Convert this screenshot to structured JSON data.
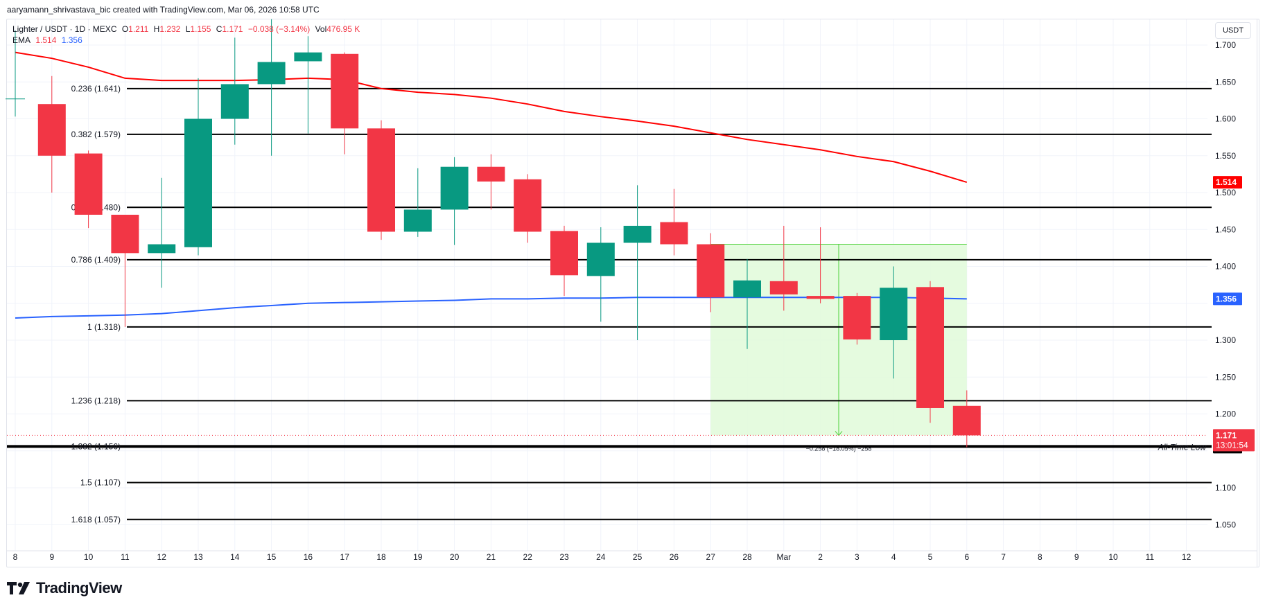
{
  "header": {
    "credit": "aaryamann_shrivastava_bic created with TradingView.com, Mar 06, 2026 10:58 UTC"
  },
  "legend": {
    "symbol": "Lighter / USDT · 1D · MEXC",
    "open_label": "O",
    "open": "1.211",
    "high_label": "H",
    "high": "1.232",
    "low_label": "L",
    "low": "1.155",
    "close_label": "C",
    "close": "1.171",
    "change": "−0.038 (−3.14%)",
    "vol_label": "Vol",
    "vol": "476.95 K",
    "ema_label": "EMA",
    "ema1": "1.514",
    "ema2": "1.356"
  },
  "price_axis": {
    "currency_button": "USDT",
    "ticks": [
      "1.700",
      "1.650",
      "1.600",
      "1.550",
      "1.500",
      "1.450",
      "1.400",
      "1.350",
      "1.300",
      "1.250",
      "1.200",
      "1.150",
      "1.100",
      "1.050"
    ],
    "badges": {
      "ema_long": {
        "value": "1.514",
        "color": "#ff0000"
      },
      "ema_short": {
        "value": "1.356",
        "color": "#2962ff"
      },
      "last_price": {
        "value": "1.171",
        "countdown": "13:01:54",
        "color": "#f23645"
      },
      "ath_low": {
        "value": "1.155",
        "color": "#000000"
      }
    }
  },
  "time_axis": {
    "ticks": [
      "8",
      "9",
      "10",
      "11",
      "12",
      "13",
      "14",
      "15",
      "16",
      "17",
      "18",
      "19",
      "20",
      "21",
      "22",
      "23",
      "24",
      "25",
      "26",
      "27",
      "28",
      "Mar",
      "2",
      "3",
      "4",
      "5",
      "6",
      "7",
      "8",
      "9",
      "10",
      "11",
      "12"
    ]
  },
  "annotations": {
    "all_time_low": "All-Time Low",
    "measure": "−0.258 (−18.05%) −258"
  },
  "footer": {
    "brand": "TradingView"
  },
  "colors": {
    "up": "#089981",
    "down": "#f23645",
    "ema_long": "#ff0000",
    "ema_short": "#2962ff",
    "fib": "#000000",
    "measure_fill": "#e2fbdc",
    "measure_line": "#4cd038"
  },
  "chart_data": {
    "type": "candlestick",
    "title": "Lighter / USDT · 1D · MEXC",
    "ylabel": "USDT",
    "ylim": [
      1.03,
      1.73
    ],
    "x": [
      "Feb 8",
      "Feb 9",
      "Feb 10",
      "Feb 11",
      "Feb 12",
      "Feb 13",
      "Feb 14",
      "Feb 15",
      "Feb 16",
      "Feb 17",
      "Feb 18",
      "Feb 19",
      "Feb 20",
      "Feb 21",
      "Feb 22",
      "Feb 23",
      "Feb 24",
      "Feb 25",
      "Feb 26",
      "Feb 27",
      "Feb 28",
      "Mar 1",
      "Mar 2",
      "Mar 3",
      "Mar 4",
      "Mar 5",
      "Mar 6"
    ],
    "ohlc": [
      {
        "date": "Feb 8",
        "o": 1.627,
        "h": 1.72,
        "l": 1.603,
        "c": 1.627
      },
      {
        "date": "Feb 9",
        "o": 1.62,
        "h": 1.658,
        "l": 1.5,
        "c": 1.55
      },
      {
        "date": "Feb 10",
        "o": 1.553,
        "h": 1.557,
        "l": 1.452,
        "c": 1.47
      },
      {
        "date": "Feb 11",
        "o": 1.47,
        "h": 1.468,
        "l": 1.318,
        "c": 1.418
      },
      {
        "date": "Feb 12",
        "o": 1.418,
        "h": 1.52,
        "l": 1.371,
        "c": 1.43
      },
      {
        "date": "Feb 13",
        "o": 1.426,
        "h": 1.655,
        "l": 1.415,
        "c": 1.6
      },
      {
        "date": "Feb 14",
        "o": 1.6,
        "h": 1.71,
        "l": 1.565,
        "c": 1.647
      },
      {
        "date": "Feb 15",
        "o": 1.647,
        "h": 1.735,
        "l": 1.55,
        "c": 1.677
      },
      {
        "date": "Feb 16",
        "o": 1.678,
        "h": 1.712,
        "l": 1.58,
        "c": 1.69
      },
      {
        "date": "Feb 17",
        "o": 1.688,
        "h": 1.69,
        "l": 1.552,
        "c": 1.587
      },
      {
        "date": "Feb 18",
        "o": 1.587,
        "h": 1.598,
        "l": 1.436,
        "c": 1.447
      },
      {
        "date": "Feb 19",
        "o": 1.447,
        "h": 1.533,
        "l": 1.44,
        "c": 1.477
      },
      {
        "date": "Feb 20",
        "o": 1.477,
        "h": 1.548,
        "l": 1.429,
        "c": 1.535
      },
      {
        "date": "Feb 21",
        "o": 1.535,
        "h": 1.552,
        "l": 1.477,
        "c": 1.515
      },
      {
        "date": "Feb 22",
        "o": 1.518,
        "h": 1.525,
        "l": 1.432,
        "c": 1.447
      },
      {
        "date": "Feb 23",
        "o": 1.448,
        "h": 1.455,
        "l": 1.36,
        "c": 1.388
      },
      {
        "date": "Feb 24",
        "o": 1.387,
        "h": 1.453,
        "l": 1.325,
        "c": 1.432
      },
      {
        "date": "Feb 25",
        "o": 1.432,
        "h": 1.51,
        "l": 1.3,
        "c": 1.455
      },
      {
        "date": "Feb 26",
        "o": 1.46,
        "h": 1.505,
        "l": 1.415,
        "c": 1.43
      },
      {
        "date": "Feb 27",
        "o": 1.43,
        "h": 1.445,
        "l": 1.338,
        "c": 1.358
      },
      {
        "date": "Feb 28",
        "o": 1.358,
        "h": 1.41,
        "l": 1.288,
        "c": 1.381
      },
      {
        "date": "Mar 1",
        "o": 1.38,
        "h": 1.455,
        "l": 1.34,
        "c": 1.362
      },
      {
        "date": "Mar 2",
        "o": 1.36,
        "h": 1.453,
        "l": 1.35,
        "c": 1.356
      },
      {
        "date": "Mar 3",
        "o": 1.36,
        "h": 1.364,
        "l": 1.294,
        "c": 1.301
      },
      {
        "date": "Mar 4",
        "o": 1.3,
        "h": 1.4,
        "l": 1.248,
        "c": 1.371
      },
      {
        "date": "Mar 5",
        "o": 1.372,
        "h": 1.38,
        "l": 1.188,
        "c": 1.208
      },
      {
        "date": "Mar 6",
        "o": 1.211,
        "h": 1.232,
        "l": 1.155,
        "c": 1.171
      }
    ],
    "series": [
      {
        "name": "EMA (long)",
        "color": "#ff0000",
        "last": 1.514,
        "values": [
          1.69,
          1.682,
          1.67,
          1.655,
          1.652,
          1.652,
          1.652,
          1.653,
          1.655,
          1.653,
          1.641,
          1.636,
          1.633,
          1.628,
          1.62,
          1.61,
          1.603,
          1.597,
          1.59,
          1.581,
          1.572,
          1.565,
          1.558,
          1.549,
          1.542,
          1.529,
          1.514
        ]
      },
      {
        "name": "EMA (short)",
        "color": "#2962ff",
        "last": 1.356,
        "values": [
          1.33,
          1.332,
          1.333,
          1.334,
          1.336,
          1.34,
          1.344,
          1.347,
          1.35,
          1.351,
          1.352,
          1.353,
          1.354,
          1.356,
          1.356,
          1.357,
          1.357,
          1.358,
          1.358,
          1.358,
          1.358,
          1.358,
          1.358,
          1.358,
          1.358,
          1.357,
          1.356
        ]
      }
    ],
    "fib_levels": [
      {
        "ratio": "0.236",
        "price": 1.641
      },
      {
        "ratio": "0.382",
        "price": 1.579
      },
      {
        "ratio": "0.618",
        "price": 1.48
      },
      {
        "ratio": "0.786",
        "price": 1.409
      },
      {
        "ratio": "1",
        "price": 1.318
      },
      {
        "ratio": "1.236",
        "price": 1.218
      },
      {
        "ratio": "1.382",
        "price": 1.156
      },
      {
        "ratio": "1.5",
        "price": 1.107
      },
      {
        "ratio": "1.618",
        "price": 1.057
      }
    ],
    "measure_box": {
      "from_date": "Feb 27",
      "to_date": "Mar 6",
      "top": 1.43,
      "bottom": 1.171,
      "label": "−0.258 (−18.05%) −258"
    },
    "annotation": {
      "text": "All-Time Low",
      "price": 1.155
    },
    "grid": true,
    "legend_position": "top-left"
  }
}
